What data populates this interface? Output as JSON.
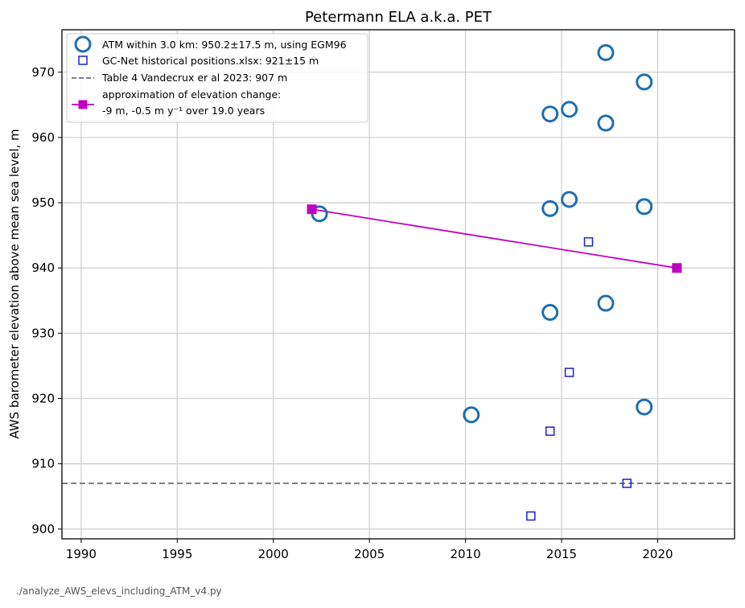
{
  "chart_data": {
    "type": "scatter",
    "title": "Petermann ELA a.k.a. PET",
    "xlabel": "",
    "ylabel": "AWS barometer elevation above mean sea level, m",
    "xlim": [
      1989,
      2024
    ],
    "ylim": [
      898.5,
      976.5
    ],
    "xticks": [
      1990,
      1995,
      2000,
      2005,
      2010,
      2015,
      2020
    ],
    "yticks": [
      900,
      910,
      920,
      930,
      940,
      950,
      960,
      970
    ],
    "grid": true,
    "legend_position": "top-left",
    "series": [
      {
        "name": "ATM within 3.0 km: 950.2±17.5 m, using EGM96",
        "marker": "open-circle",
        "color": "#1f6fb0",
        "points": [
          [
            2002.4,
            948.3
          ],
          [
            2010.3,
            917.5
          ],
          [
            2014.4,
            963.6
          ],
          [
            2014.4,
            949.1
          ],
          [
            2014.4,
            933.2
          ],
          [
            2015.4,
            964.3
          ],
          [
            2015.4,
            950.5
          ],
          [
            2017.3,
            973.0
          ],
          [
            2017.3,
            962.2
          ],
          [
            2017.3,
            934.6
          ],
          [
            2019.3,
            968.5
          ],
          [
            2019.3,
            949.4
          ],
          [
            2019.3,
            918.7
          ]
        ]
      },
      {
        "name": "GC-Net historical positions.xlsx: 921±15 m",
        "marker": "open-square",
        "color": "#1f1fd0",
        "points": [
          [
            2013.4,
            902.0
          ],
          [
            2014.4,
            915.0
          ],
          [
            2015.4,
            924.0
          ],
          [
            2016.4,
            944.0
          ],
          [
            2018.4,
            907.0
          ]
        ]
      },
      {
        "name": "Table 4 Vandecrux er al 2023: 907 m",
        "type": "hline",
        "style": "dashed",
        "color": "#808080",
        "y": 907
      },
      {
        "name": "approximation of elevation change:",
        "name_line2": "-9 m, -0.5 m y⁻¹ over 19.0 years",
        "type": "line",
        "marker": "filled-square",
        "color": "#c000c0",
        "points": [
          [
            2002.0,
            949.0
          ],
          [
            2021.0,
            940.0
          ]
        ]
      }
    ]
  },
  "footer": "./analyze_AWS_elevs_including_ATM_v4.py"
}
